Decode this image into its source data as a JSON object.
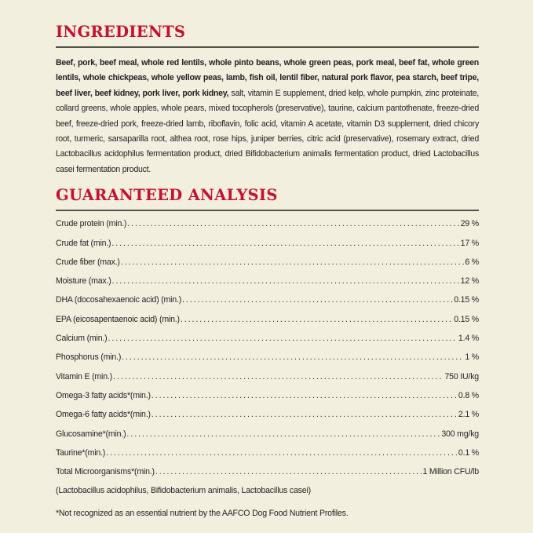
{
  "ingredients": {
    "title": "INGREDIENTS",
    "bold_text": "Beef, pork, beef meal, whole red lentils, whole pinto beans, whole green peas, pork meal, beef fat, whole green lentils, whole chickpeas, whole yellow peas, lamb, fish oil, lentil fiber, natural pork flavor, pea starch, beef tripe, beef liver, beef kidney, pork liver, pork kidney,",
    "regular_text": " salt, vitamin E supplement, dried kelp, whole pumpkin, zinc proteinate, collard greens, whole apples, whole pears, mixed tocopherols (preservative), taurine, calcium pantothenate, freeze-dried beef, freeze-dried pork, freeze-dried lamb, riboflavin, folic acid, vitamin A acetate, vitamin D3 supplement, dried chicory root, turmeric, sarsaparilla root, althea root, rose hips, juniper berries, citric acid (preservative), rosemary extract, dried Lactobacillus acidophilus fermentation product, dried Bifidobacterium animalis fermentation product, dried Lactobacillus casei fermentation product."
  },
  "analysis": {
    "title": "GUARANTEED ANALYSIS",
    "rows": [
      {
        "label": "Crude protein (min.)",
        "value": "29 %"
      },
      {
        "label": "Crude fat (min.)",
        "value": "17 %"
      },
      {
        "label": "Crude fiber (max.)",
        "value": "6 %"
      },
      {
        "label": "Moisture (max.)",
        "value": "12 %"
      },
      {
        "label": "DHA (docosahexaenoic acid) (min.)",
        "value": "0.15 %"
      },
      {
        "label": "EPA (eicosapentaenoic acid) (min.)",
        "value": "0.15 %"
      },
      {
        "label": "Calcium (min.)",
        "value": "1.4 %"
      },
      {
        "label": "Phosphorus (min.)",
        "value": "1 %"
      },
      {
        "label": "Vitamin E (min.)",
        "value": "750 IU/kg"
      },
      {
        "label": "Omega-3 fatty acids*(min.)",
        "value": "0.8 %"
      },
      {
        "label": "Omega-6 fatty acids*(min.)",
        "value": "2.1 %"
      },
      {
        "label": "Glucosamine*(min.)",
        "value": "300 mg/kg"
      },
      {
        "label": "Taurine*(min.)",
        "value": "0.1 %"
      },
      {
        "label": "Total Microorganisms*(min.)",
        "value": "1 Million CFU/lb"
      }
    ],
    "microorganisms_note": "(Lactobacillus acidophilus, Bifidobacterium animalis, Lactobacillus casei)",
    "footnote": "*Not recognized as an essential nutrient by the AAFCO Dog Food Nutrient Profiles."
  },
  "colors": {
    "heading": "#c8102e",
    "background": "#f2efdf",
    "rule": "#55524a"
  }
}
